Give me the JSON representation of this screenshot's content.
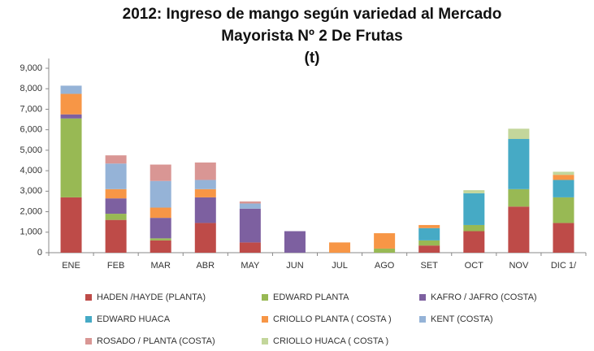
{
  "chart_data": {
    "type": "stacked_bar",
    "title": [
      "2012: Ingreso de mango según variedad al Mercado",
      "Mayorista Nº 2 De Frutas",
      "(t)"
    ],
    "categories": [
      "ENE",
      "FEB",
      "MAR",
      "ABR",
      "MAY",
      "JUN",
      "JUL",
      "AGO",
      "SET",
      "OCT",
      "NOV",
      "DIC 1/"
    ],
    "series": [
      {
        "name": "HADEN /HAYDE (PLANTA)",
        "color": "#be4b48",
        "values": [
          2700,
          1600,
          600,
          1450,
          500,
          0,
          0,
          0,
          350,
          1050,
          2250,
          1450
        ]
      },
      {
        "name": "EDWARD PLANTA",
        "color": "#98b954",
        "values": [
          3850,
          300,
          100,
          0,
          0,
          0,
          0,
          200,
          250,
          300,
          850,
          1250
        ]
      },
      {
        "name": "KAFRO / JAFRO (COSTA)",
        "color": "#7d60a0",
        "values": [
          200,
          750,
          1000,
          1250,
          1650,
          1050,
          0,
          0,
          0,
          0,
          0,
          0
        ]
      },
      {
        "name": "EDWARD HUACA",
        "color": "#46aac5",
        "values": [
          0,
          0,
          0,
          0,
          0,
          0,
          0,
          0,
          600,
          1550,
          2450,
          850
        ]
      },
      {
        "name": "CRIOLLO PLANTA ( COSTA )",
        "color": "#f79646",
        "values": [
          1000,
          450,
          500,
          400,
          0,
          0,
          500,
          750,
          150,
          0,
          0,
          250
        ]
      },
      {
        "name": "KENT (COSTA)",
        "color": "#95b3d7",
        "values": [
          400,
          1250,
          1300,
          450,
          250,
          0,
          0,
          0,
          0,
          0,
          0,
          0
        ]
      },
      {
        "name": "ROSADO / PLANTA (COSTA)",
        "color": "#d99694",
        "values": [
          0,
          400,
          800,
          850,
          100,
          0,
          0,
          0,
          0,
          0,
          0,
          0
        ]
      },
      {
        "name": "CRIOLLO HUACA ( COSTA )",
        "color": "#c3d69b",
        "values": [
          0,
          0,
          0,
          0,
          0,
          0,
          0,
          0,
          0,
          150,
          500,
          150
        ]
      }
    ],
    "ylim": [
      0,
      9000
    ],
    "yticks": [
      0,
      {
        "value": 1000,
        "label": "1,000"
      },
      {
        "value": 2000,
        "label": "2,000"
      },
      {
        "value": 3000,
        "label": "3,000"
      },
      {
        "value": 4000,
        "label": "4,000"
      },
      {
        "value": 5000,
        "label": "5,000"
      },
      {
        "value": 6000,
        "label": "6,000"
      },
      {
        "value": 7000,
        "label": "7,000"
      },
      {
        "value": 8000,
        "label": "8,000"
      },
      {
        "value": 9000,
        "label": "9,000"
      }
    ],
    "legend": "bottom"
  }
}
